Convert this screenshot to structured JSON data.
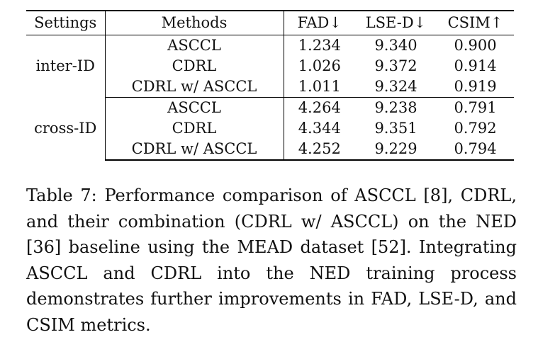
{
  "table": {
    "headers": [
      "Settings",
      "Methods",
      "FAD↓",
      "LSE-D↓",
      "CSIM↑"
    ],
    "groups": [
      {
        "setting": "inter-ID",
        "rows": [
          {
            "method": "ASCCL",
            "fad": "1.234",
            "lse_d": "9.340",
            "csim": "0.900"
          },
          {
            "method": "CDRL",
            "fad": "1.026",
            "lse_d": "9.372",
            "csim": "0.914"
          },
          {
            "method": "CDRL w/ ASCCL",
            "fad": "1.011",
            "lse_d": "9.324",
            "csim": "0.919"
          }
        ]
      },
      {
        "setting": "cross-ID",
        "rows": [
          {
            "method": "ASCCL",
            "fad": "4.264",
            "lse_d": "9.238",
            "csim": "0.791"
          },
          {
            "method": "CDRL",
            "fad": "4.344",
            "lse_d": "9.351",
            "csim": "0.792"
          },
          {
            "method": "CDRL w/ ASCCL",
            "fad": "4.252",
            "lse_d": "9.229",
            "csim": "0.794"
          }
        ]
      }
    ]
  },
  "caption": "Table 7: Performance comparison of ASCCL [8], CDRL, and their combination (CDRL w/ ASCCL) on the NED [36] baseline using the MEAD dataset [52]. Integrating ASCCL and CDRL into the NED training process demonstrates further improvements in FAD, LSE-D, and CSIM metrics."
}
